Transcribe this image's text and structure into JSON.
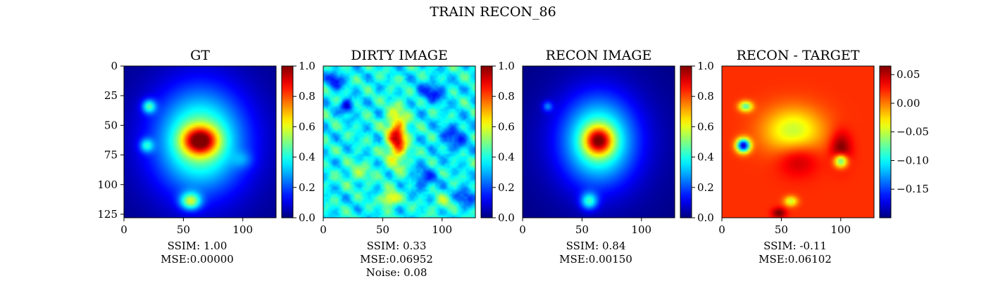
{
  "figure_title": "TRAIN RECON_86",
  "panels": [
    {
      "title": "GT",
      "metrics": [
        "SSIM: 1.00",
        "MSE:0.00000"
      ]
    },
    {
      "title": "DIRTY IMAGE",
      "metrics": [
        "SSIM: 0.33",
        "MSE:0.06952",
        "Noise: 0.08"
      ]
    },
    {
      "title": "RECON IMAGE",
      "metrics": [
        "SSIM: 0.84",
        "MSE:0.00150"
      ]
    },
    {
      "title": "RECON - TARGET",
      "metrics": [
        "SSIM: -0.11",
        "MSE:0.06102"
      ]
    }
  ],
  "chart_data": [
    {
      "type": "heatmap",
      "title": "GT",
      "colormap": "jet",
      "x_ticks": [
        "0",
        "50",
        "100"
      ],
      "y_ticks": [
        "0",
        "25",
        "50",
        "75",
        "100",
        "125"
      ],
      "xlim": [
        0,
        128
      ],
      "ylim": [
        128,
        0
      ],
      "colorbar": {
        "range": [
          0.0,
          1.0
        ],
        "ticks": [
          "0.0",
          "0.2",
          "0.4",
          "0.6",
          "0.8",
          "1.0"
        ]
      },
      "background_value": 0.0,
      "blobs": [
        {
          "x": 64,
          "y": 63,
          "sx": 24,
          "sy": 28,
          "amp": 0.42
        },
        {
          "x": 64,
          "y": 63,
          "sx": 10,
          "sy": 8,
          "amp": 0.58
        },
        {
          "x": 64,
          "y": 63,
          "sx": 46,
          "sy": 48,
          "amp": 0.12
        },
        {
          "x": 21,
          "y": 34,
          "sx": 4,
          "sy": 4,
          "amp": 0.35
        },
        {
          "x": 19,
          "y": 67,
          "sx": 4,
          "sy": 4,
          "amp": 0.28
        },
        {
          "x": 56,
          "y": 114,
          "sx": 6,
          "sy": 5,
          "amp": 0.45
        },
        {
          "x": 100,
          "y": 79,
          "sx": 6,
          "sy": 5,
          "amp": 0.1
        }
      ]
    },
    {
      "type": "heatmap",
      "title": "DIRTY IMAGE",
      "colormap": "jet",
      "x_ticks": [
        "0",
        "50",
        "100"
      ],
      "xlim": [
        0,
        128
      ],
      "ylim": [
        128,
        0
      ],
      "colorbar": {
        "range": [
          0.0,
          1.0
        ],
        "ticks": [
          "0.0",
          "0.2",
          "0.4",
          "0.6",
          "0.8",
          "1.0"
        ]
      },
      "background_value": 0.38,
      "blobs": [
        {
          "x": 62,
          "y": 60,
          "sx": 6,
          "sy": 16,
          "amp": 0.42
        },
        {
          "x": 62,
          "y": 62,
          "sx": 4,
          "sy": 5,
          "amp": 0.15
        },
        {
          "x": 56,
          "y": 112,
          "sx": 5,
          "sy": 4,
          "amp": 0.32
        },
        {
          "x": 20,
          "y": 34,
          "sx": 4,
          "sy": 4,
          "amp": -0.3
        },
        {
          "x": 10,
          "y": 12,
          "sx": 5,
          "sy": 5,
          "amp": -0.25
        },
        {
          "x": 92,
          "y": 22,
          "sx": 8,
          "sy": 6,
          "amp": -0.22
        },
        {
          "x": 110,
          "y": 60,
          "sx": 8,
          "sy": 8,
          "amp": -0.2
        },
        {
          "x": 85,
          "y": 95,
          "sx": 7,
          "sy": 7,
          "amp": -0.18
        },
        {
          "x": 120,
          "y": 110,
          "sx": 6,
          "sy": 6,
          "amp": -0.2
        },
        {
          "x": 30,
          "y": 90,
          "sx": 8,
          "sy": 6,
          "amp": 0.12
        },
        {
          "x": 100,
          "y": 115,
          "sx": 6,
          "sy": 5,
          "amp": 0.12
        }
      ],
      "noise": 0.08
    },
    {
      "type": "heatmap",
      "title": "RECON IMAGE",
      "colormap": "jet",
      "x_ticks": [
        "0",
        "50",
        "100"
      ],
      "xlim": [
        0,
        128
      ],
      "ylim": [
        128,
        0
      ],
      "colorbar": {
        "range": [
          0.0,
          1.0
        ],
        "ticks": [
          "0.0",
          "0.2",
          "0.4",
          "0.6",
          "0.8",
          "1.0"
        ]
      },
      "background_value": 0.0,
      "blobs": [
        {
          "x": 64,
          "y": 63,
          "sx": 20,
          "sy": 24,
          "amp": 0.42
        },
        {
          "x": 64,
          "y": 63,
          "sx": 8,
          "sy": 8,
          "amp": 0.52
        },
        {
          "x": 64,
          "y": 63,
          "sx": 40,
          "sy": 42,
          "amp": 0.1
        },
        {
          "x": 21,
          "y": 34,
          "sx": 3,
          "sy": 3,
          "amp": 0.2
        },
        {
          "x": 56,
          "y": 114,
          "sx": 5,
          "sy": 5,
          "amp": 0.35
        }
      ]
    },
    {
      "type": "heatmap",
      "title": "RECON - TARGET",
      "colormap": "jet",
      "x_ticks": [
        "0",
        "50",
        "100"
      ],
      "xlim": [
        0,
        128
      ],
      "ylim": [
        128,
        0
      ],
      "colorbar": {
        "range": [
          -0.2,
          0.065
        ],
        "ticks": [
          "0.05",
          "0.00",
          "−0.05",
          "−0.10",
          "−0.15"
        ]
      },
      "background_value": 0.02,
      "blobs": [
        {
          "x": 60,
          "y": 55,
          "sx": 18,
          "sy": 14,
          "amp": -0.07
        },
        {
          "x": 18,
          "y": 67,
          "sx": 4,
          "sy": 4,
          "amp": -0.2
        },
        {
          "x": 20,
          "y": 34,
          "sx": 4,
          "sy": 3,
          "amp": -0.1
        },
        {
          "x": 100,
          "y": 80,
          "sx": 4,
          "sy": 4,
          "amp": -0.12
        },
        {
          "x": 58,
          "y": 114,
          "sx": 4,
          "sy": 3,
          "amp": -0.07
        },
        {
          "x": 48,
          "y": 124,
          "sx": 4,
          "sy": 3,
          "amp": 0.05
        },
        {
          "x": 100,
          "y": 70,
          "sx": 6,
          "sy": 10,
          "amp": 0.05
        },
        {
          "x": 64,
          "y": 78,
          "sx": 12,
          "sy": 10,
          "amp": 0.035
        }
      ]
    }
  ]
}
